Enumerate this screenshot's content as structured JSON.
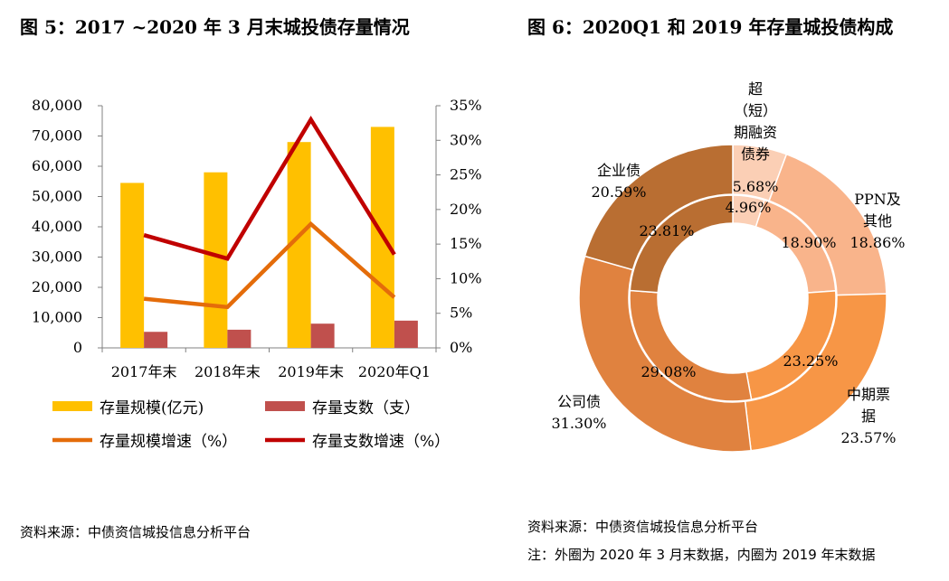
{
  "left_chart": {
    "title": "图 5：2017 ~2020 年 3 月末城投债存量情况",
    "source": "资料来源：中债资信城投信息分析平台"
  },
  "right_chart": {
    "title": "图 6：2020Q1 和 2019 年存量城投债构成",
    "source": "资料来源：中债资信城投信息分析平台",
    "note": "注：外圈为 2020 年 3 月末数据，内圈为 2019 年末数据"
  },
  "chart_data": [
    {
      "type": "bar",
      "title": "2017 ~2020 年 3 月末城投债存量情况",
      "categories": [
        "2017年末",
        "2018年末",
        "2019年末",
        "2020年Q1"
      ],
      "y_left": {
        "ylim": [
          0,
          80000
        ],
        "ticks": [
          "0",
          "10,000",
          "20,000",
          "30,000",
          "40,000",
          "50,000",
          "60,000",
          "70,000",
          "80,000"
        ]
      },
      "y_right": {
        "ylim": [
          0,
          35
        ],
        "ticks": [
          "0%",
          "5%",
          "10%",
          "15%",
          "20%",
          "25%",
          "30%",
          "35%"
        ]
      },
      "series": [
        {
          "name": "存量规模(亿元)",
          "kind": "bar",
          "axis": "left",
          "color": "#FFC000",
          "values": [
            54500,
            58000,
            68000,
            73000
          ]
        },
        {
          "name": "存量支数（支）",
          "kind": "bar",
          "axis": "left",
          "color": "#C0504D",
          "values": [
            5300,
            6000,
            8000,
            9000
          ]
        },
        {
          "name": "存量规模增速（%）",
          "kind": "line",
          "axis": "right",
          "color": "#E46C0A",
          "values": [
            7.1,
            5.9,
            17.9,
            7.3
          ]
        },
        {
          "name": "存量支数增速（%）",
          "kind": "line",
          "axis": "right",
          "color": "#C00000",
          "values": [
            16.3,
            12.9,
            33.0,
            13.5
          ]
        }
      ]
    },
    {
      "type": "pie",
      "subtype": "donut",
      "title": "2020Q1 和 2019 年存量城投债构成",
      "outer_ring": {
        "name": "2020年3月末",
        "slices": [
          {
            "label": "超（短）期融资债券",
            "label_lines": [
              "超",
              "（短）",
              "期融资",
              "债券"
            ],
            "value": 5.68,
            "display": "5.68%",
            "color": "#FBCFB5"
          },
          {
            "label": "PPN及其他",
            "label_lines": [
              "PPN及",
              "其他"
            ],
            "value": 18.86,
            "display": "18.86%",
            "color": "#F9B48B"
          },
          {
            "label": "中期票据",
            "label_lines": [
              "中期票",
              "据"
            ],
            "value": 23.57,
            "display": "23.57%",
            "color": "#F79646"
          },
          {
            "label": "公司债",
            "label_lines": [
              "公司债"
            ],
            "value": 31.3,
            "display": "31.30%",
            "color": "#E0823F"
          },
          {
            "label": "企业债",
            "label_lines": [
              "企业债"
            ],
            "value": 20.59,
            "display": "20.59%",
            "color": "#B96E32"
          }
        ]
      },
      "inner_ring": {
        "name": "2019年末",
        "slices": [
          {
            "label": "超（短）期融资债券",
            "value": 4.96,
            "display": "4.96%",
            "color": "#FBCFB5"
          },
          {
            "label": "PPN及其他",
            "value": 18.9,
            "display": "18.90%",
            "color": "#F9B48B"
          },
          {
            "label": "中期票据",
            "value": 23.25,
            "display": "23.25%",
            "color": "#F79646"
          },
          {
            "label": "公司债",
            "value": 29.08,
            "display": "29.08%",
            "color": "#E0823F"
          },
          {
            "label": "企业债",
            "value": 23.81,
            "display": "23.81%",
            "color": "#B96E32"
          }
        ]
      }
    }
  ]
}
